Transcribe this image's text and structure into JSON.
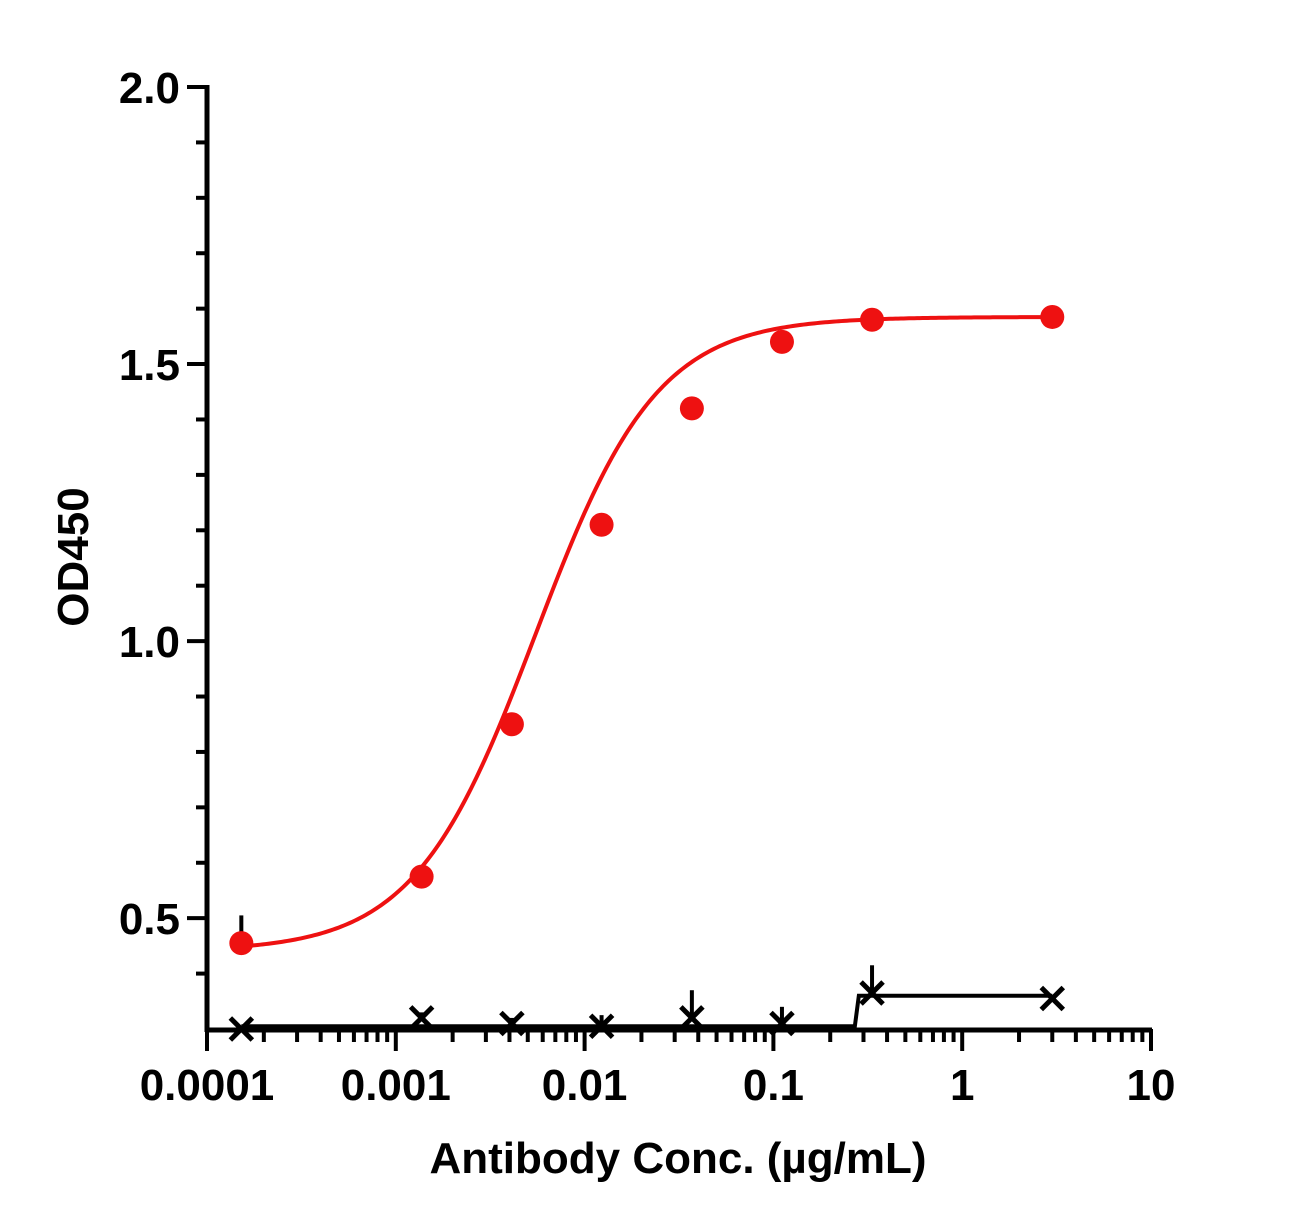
{
  "chart_data": {
    "type": "scatter",
    "title": "",
    "xlabel": "Antibody Conc. (µg/mL)",
    "ylabel": "OD450",
    "xscale": "log",
    "xlim": [
      0.0001,
      10
    ],
    "ylim": [
      0.3,
      2.0
    ],
    "x_ticks": [
      0.0001,
      0.001,
      0.01,
      0.1,
      1,
      10
    ],
    "x_tick_labels": [
      "0.0001",
      "0.001",
      "0.01",
      "0.1",
      "1",
      "10"
    ],
    "y_ticks": [
      0.5,
      1.0,
      1.5,
      2.0
    ],
    "y_tick_labels": [
      "0.5",
      "1.0",
      "1.5",
      "2.0"
    ],
    "grid": false,
    "legend": "none",
    "series": [
      {
        "color": "#ee1111",
        "marker": "circle",
        "fit": "four-parameter logistic",
        "x": [
          0.000152,
          0.00137,
          0.00412,
          0.0123,
          0.037,
          0.111,
          0.333,
          3
        ],
        "y": [
          0.455,
          0.575,
          0.85,
          1.21,
          1.42,
          1.54,
          1.58,
          1.585
        ],
        "error": [
          0.05,
          0,
          0,
          0,
          0,
          0,
          0,
          0
        ],
        "fit_params": {
          "bottom": 0.44,
          "top": 1.585,
          "ec50": 0.0055,
          "hill": 1.35
        }
      },
      {
        "color": "#000000",
        "marker": "x",
        "fit": "step",
        "x": [
          0.000152,
          0.00137,
          0.00412,
          0.0123,
          0.037,
          0.111,
          0.333,
          3
        ],
        "y": [
          0.3,
          0.32,
          0.31,
          0.305,
          0.32,
          0.31,
          0.365,
          0.355
        ],
        "error": [
          0,
          0.01,
          0.01,
          0.02,
          0.05,
          0.03,
          0.05,
          0
        ],
        "step_at": 0.27,
        "step_low": 0.305,
        "step_high": 0.36
      }
    ]
  }
}
